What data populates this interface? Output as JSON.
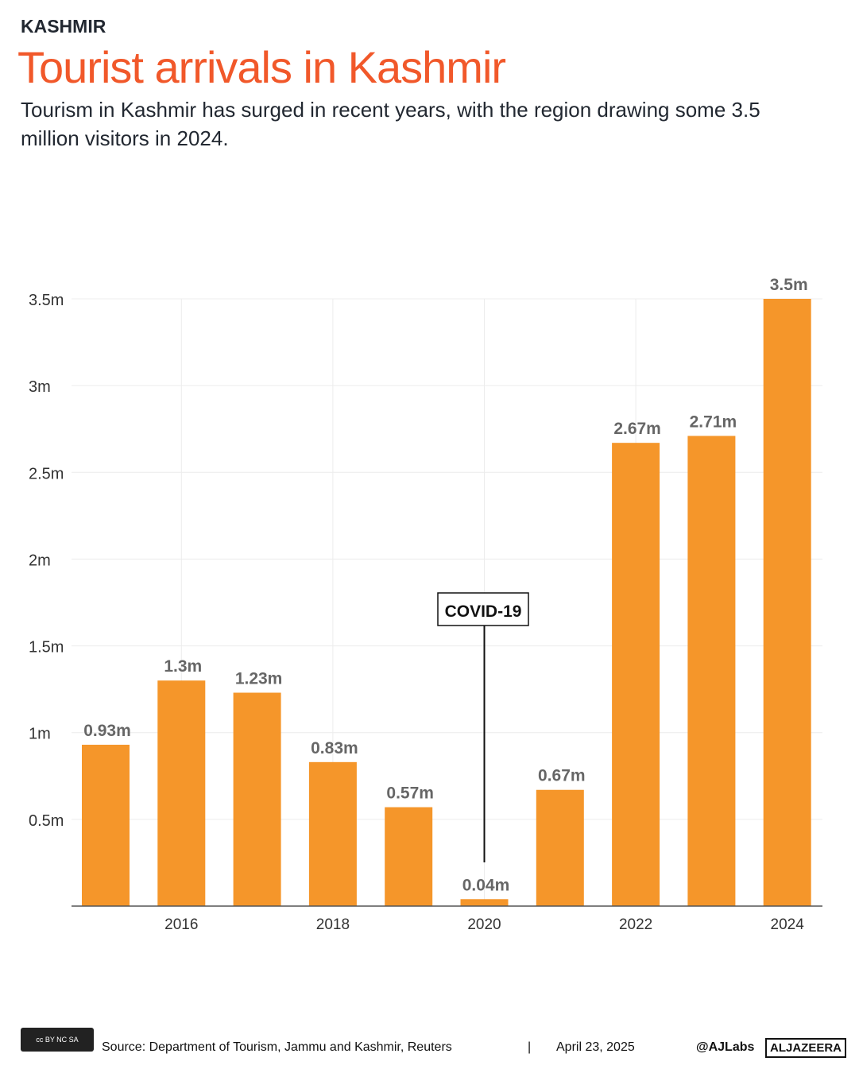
{
  "header": {
    "kicker": "KASHMIR",
    "title": "Tourist arrivals in Kashmir",
    "subtitle": "Tourism in Kashmir has surged in recent years, with the region drawing some 3.5 million visitors in 2024."
  },
  "chart_data": {
    "type": "bar",
    "categories": [
      2015,
      2016,
      2017,
      2018,
      2019,
      2020,
      2021,
      2022,
      2023,
      2024
    ],
    "values": [
      0.93,
      1.3,
      1.23,
      0.83,
      0.57,
      0.04,
      0.67,
      2.67,
      2.71,
      3.5
    ],
    "data_labels": [
      "0.93m",
      "1.3m",
      "1.23m",
      "0.83m",
      "0.57m",
      "0.04m",
      "0.67m",
      "2.67m",
      "2.71m",
      "3.5m"
    ],
    "ylim": [
      0,
      3.5
    ],
    "yticks": [
      0.5,
      1,
      1.5,
      2,
      2.5,
      3,
      3.5
    ],
    "ytick_labels": [
      "0.5m",
      "1m",
      "1.5m",
      "2m",
      "2.5m",
      "3m",
      "3.5m"
    ],
    "xtick_labels": [
      "2016",
      "2018",
      "2020",
      "2022",
      "2024"
    ],
    "xtick_values": [
      2016,
      2018,
      2020,
      2022,
      2024
    ],
    "annotation": {
      "text": "COVID-19",
      "year": 2020
    },
    "bar_color": "#f5962a",
    "grid": true
  },
  "footer": {
    "cc": "cc BY NC SA",
    "source": "Source:  Department of Tourism, Jammu and Kashmir, Reuters",
    "sep": "|",
    "date": "April 23, 2025",
    "handle": "@AJLabs",
    "brand": "ALJAZEERA"
  }
}
